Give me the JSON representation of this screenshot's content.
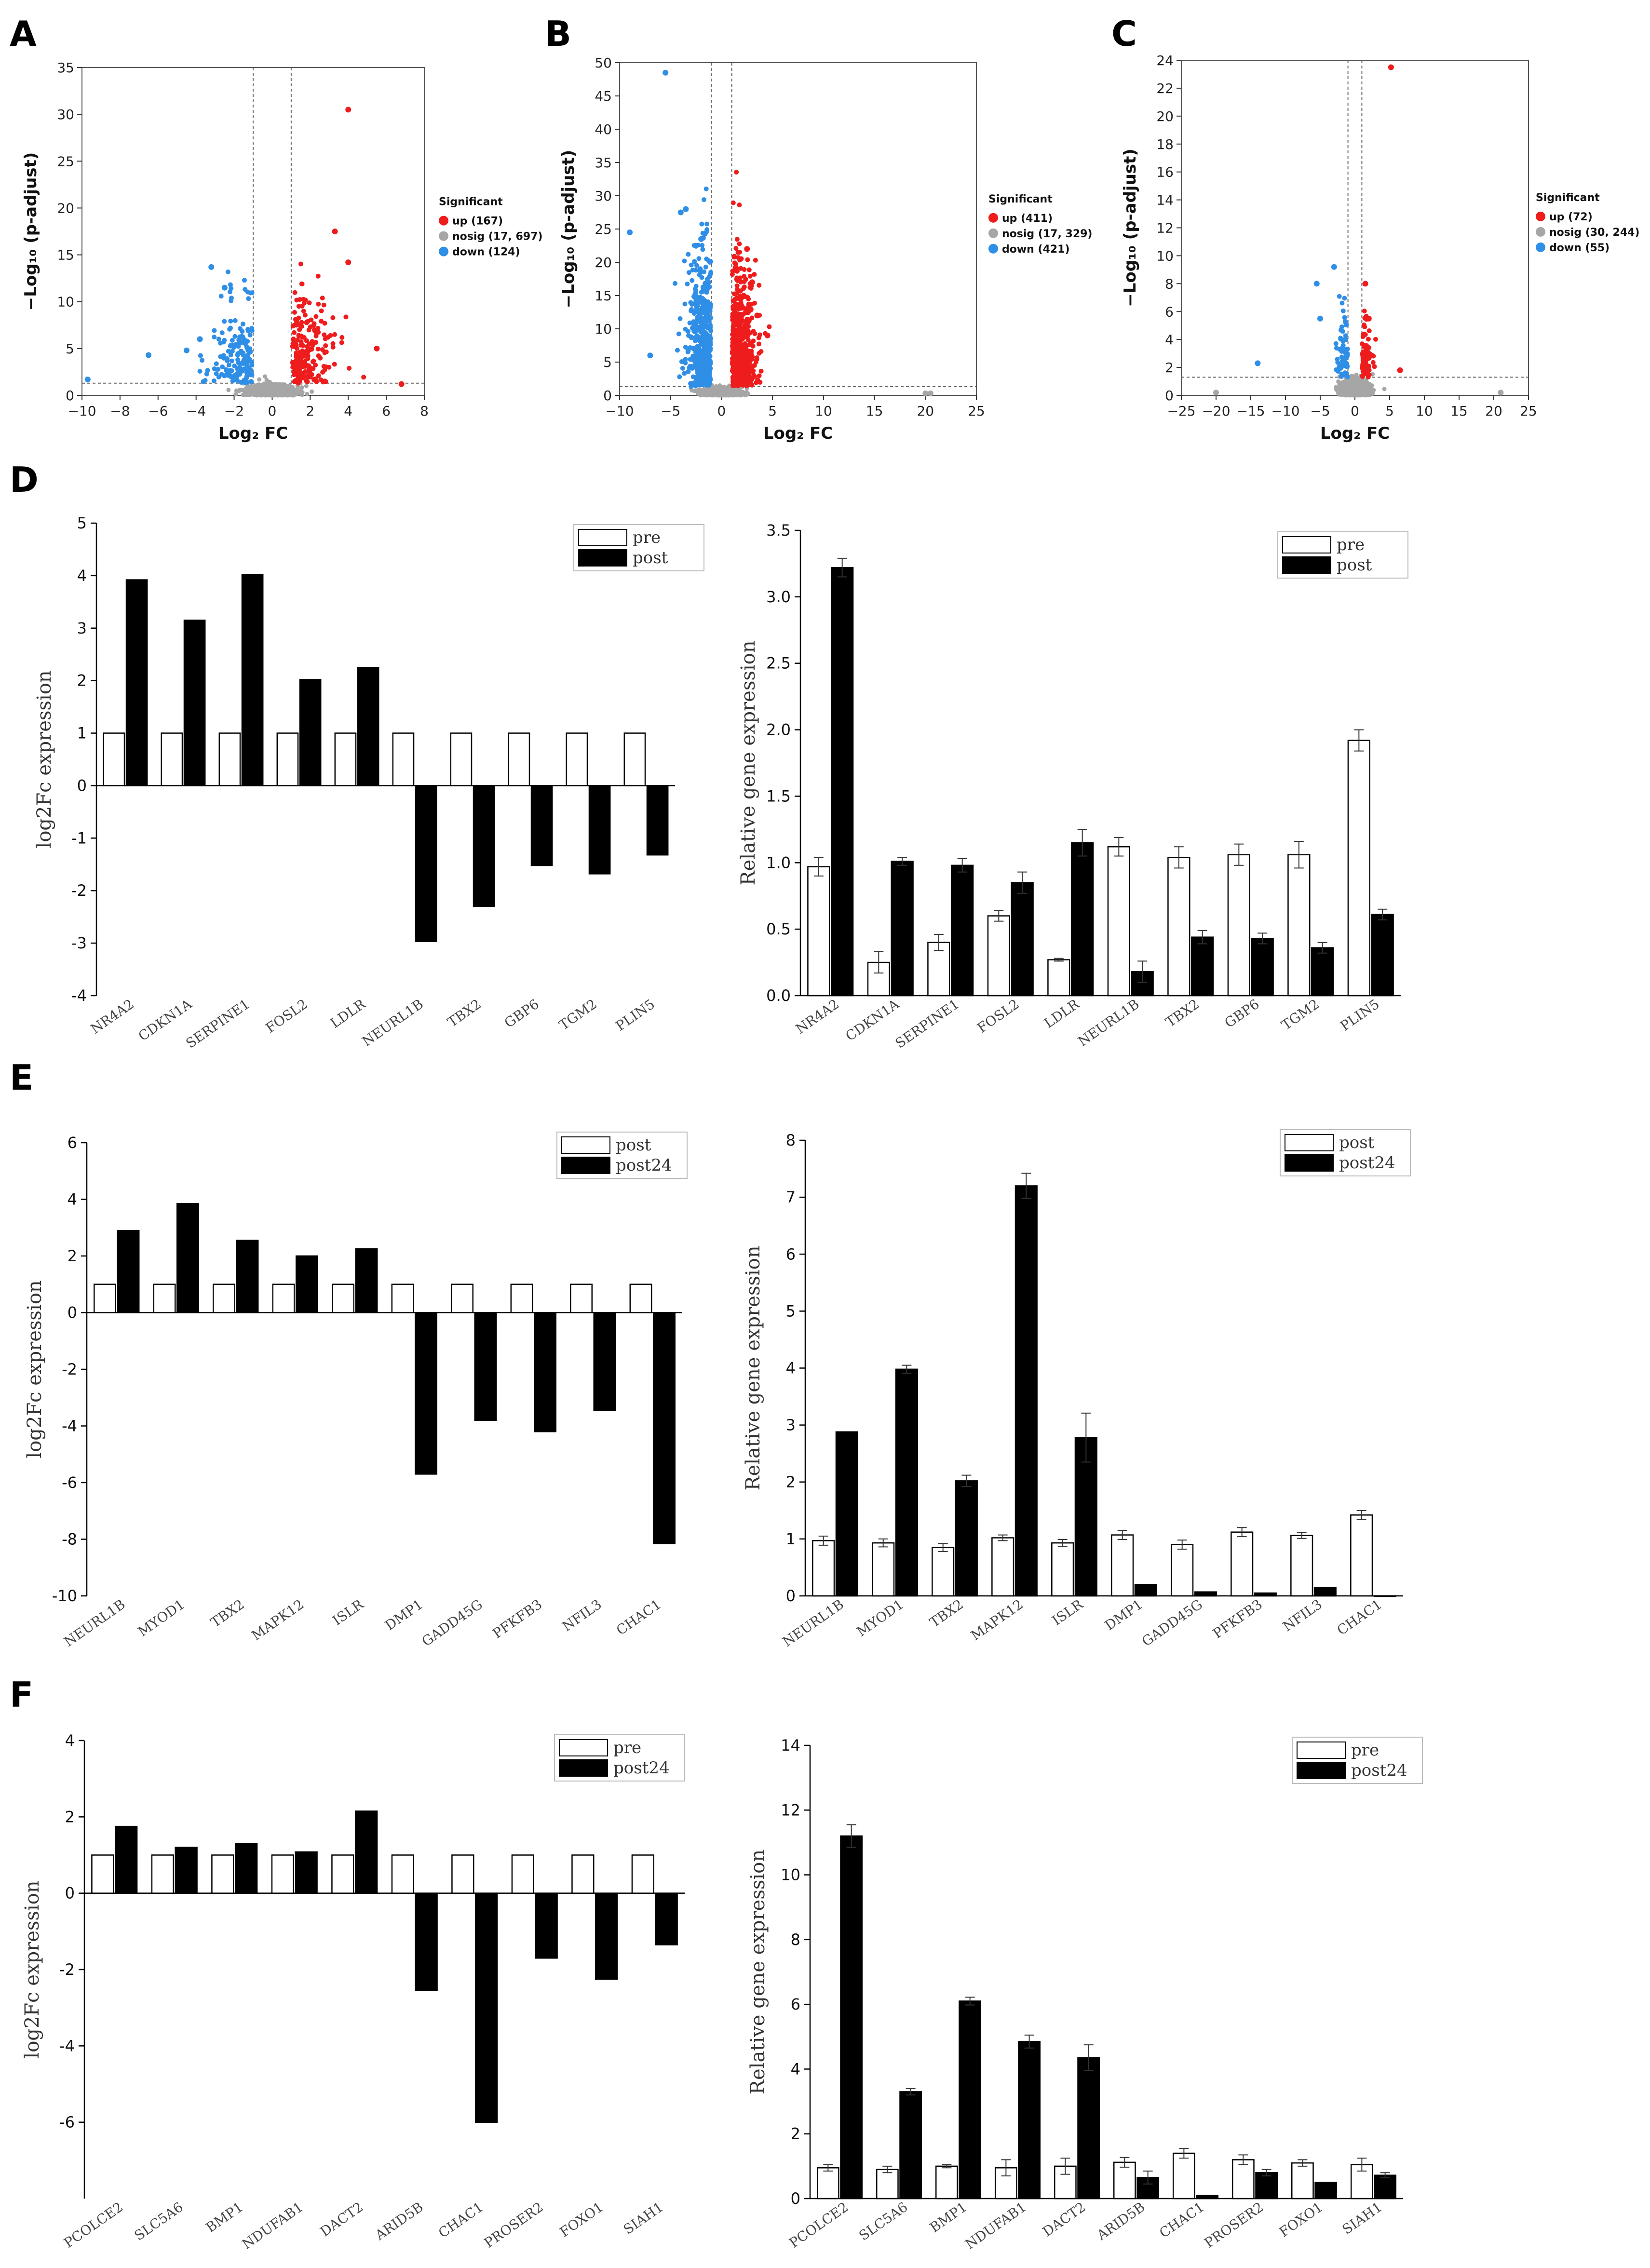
{
  "panel_labels": [
    "A",
    "B",
    "C",
    "D",
    "E",
    "F"
  ],
  "colors": {
    "up": "#ee1c1c",
    "nosig": "#a6a6a6",
    "down": "#2f8ee6",
    "pre": "#ffffff",
    "post": "#000000"
  },
  "chart_data": [
    {
      "id": "A",
      "type": "scatter",
      "title": "",
      "xlabel": "Log₂ FC",
      "ylabel": "−Log₁₀ (p-adjust)",
      "xlim": [
        -10,
        8
      ],
      "ylim": [
        0,
        35
      ],
      "xticks": [
        -10,
        -8,
        -6,
        -4,
        -2,
        0,
        2,
        4,
        6,
        8
      ],
      "yticks": [
        0,
        5,
        10,
        15,
        20,
        25,
        30,
        35
      ],
      "legend_title": "Significant",
      "legend_position": "right",
      "legend": [
        "up (167)",
        "nosig (17, 697)",
        "down (124)"
      ],
      "fc_threshold": [
        -1,
        1
      ],
      "p_threshold": 1.3,
      "outliers": [
        {
          "x": 4.0,
          "y": 30.5,
          "group": "up"
        },
        {
          "x": 3.3,
          "y": 17.5,
          "group": "up"
        },
        {
          "x": 4.0,
          "y": 14.2,
          "group": "up"
        },
        {
          "x": 6.8,
          "y": 1.2,
          "group": "up"
        },
        {
          "x": 5.5,
          "y": 5.0,
          "group": "up"
        },
        {
          "x": -3.2,
          "y": 13.7,
          "group": "down"
        },
        {
          "x": -2.5,
          "y": 11.5,
          "group": "down"
        },
        {
          "x": -6.5,
          "y": 4.3,
          "group": "down"
        },
        {
          "x": -9.7,
          "y": 1.7,
          "group": "down"
        },
        {
          "x": -3.8,
          "y": 6.0,
          "group": "down"
        },
        {
          "x": -4.5,
          "y": 4.8,
          "group": "down"
        }
      ]
    },
    {
      "id": "B",
      "type": "scatter",
      "title": "",
      "xlabel": "Log₂ FC",
      "ylabel": "−Log₁₀ (p-adjust)",
      "xlim": [
        -10,
        25
      ],
      "ylim": [
        0,
        50
      ],
      "xticks": [
        -10,
        -5,
        0,
        5,
        10,
        15,
        20,
        25
      ],
      "yticks": [
        0,
        5,
        10,
        15,
        20,
        25,
        30,
        35,
        40,
        45,
        50
      ],
      "legend_title": "Significant",
      "legend_position": "right",
      "legend": [
        "up (411)",
        "nosig (17, 329)",
        "down (421)"
      ],
      "fc_threshold": [
        -1,
        1
      ],
      "p_threshold": 1.3,
      "outliers": [
        {
          "x": -5.5,
          "y": 48.5,
          "group": "down"
        },
        {
          "x": -3.5,
          "y": 28.0,
          "group": "down"
        },
        {
          "x": -4.0,
          "y": 27.5,
          "group": "down"
        },
        {
          "x": -9.0,
          "y": 24.5,
          "group": "down"
        },
        {
          "x": -2.0,
          "y": 23.5,
          "group": "down"
        },
        {
          "x": -7.0,
          "y": 6.0,
          "group": "down"
        },
        {
          "x": 2.5,
          "y": 22.0,
          "group": "up"
        },
        {
          "x": 1.5,
          "y": 19.0,
          "group": "up"
        },
        {
          "x": 3.0,
          "y": 17.0,
          "group": "up"
        },
        {
          "x": 3.5,
          "y": 12.0,
          "group": "up"
        },
        {
          "x": 4.5,
          "y": 9.0,
          "group": "up"
        },
        {
          "x": 20.0,
          "y": 0.3,
          "group": "nosig"
        },
        {
          "x": 20.5,
          "y": 0.3,
          "group": "nosig"
        }
      ]
    },
    {
      "id": "C",
      "type": "scatter",
      "title": "",
      "xlabel": "Log₂ FC",
      "ylabel": "−Log₁₀ (p-adjust)",
      "xlim": [
        -25,
        25
      ],
      "ylim": [
        0,
        24
      ],
      "xticks": [
        -25,
        -20,
        -15,
        -10,
        -5,
        0,
        5,
        10,
        15,
        20,
        25
      ],
      "yticks": [
        0,
        2,
        4,
        6,
        8,
        10,
        12,
        14,
        16,
        18,
        20,
        22,
        24
      ],
      "legend_title": "Significant",
      "legend_position": "right",
      "legend": [
        "up (72)",
        "nosig (30, 244)",
        "down (55)"
      ],
      "fc_threshold": [
        -1,
        1
      ],
      "p_threshold": 1.3,
      "outliers": [
        {
          "x": 5.2,
          "y": 23.5,
          "group": "up"
        },
        {
          "x": 1.5,
          "y": 8.0,
          "group": "up"
        },
        {
          "x": 2.0,
          "y": 5.5,
          "group": "up"
        },
        {
          "x": 6.5,
          "y": 1.8,
          "group": "up"
        },
        {
          "x": -3.0,
          "y": 9.2,
          "group": "down"
        },
        {
          "x": -5.5,
          "y": 8.0,
          "group": "down"
        },
        {
          "x": -14.0,
          "y": 2.3,
          "group": "down"
        },
        {
          "x": -5.0,
          "y": 5.5,
          "group": "down"
        },
        {
          "x": -20.0,
          "y": 0.2,
          "group": "nosig"
        },
        {
          "x": 21.0,
          "y": 0.2,
          "group": "nosig"
        }
      ]
    },
    {
      "id": "D-left",
      "type": "bar",
      "title": "",
      "xlabel": "",
      "ylabel": "log2Fc expression",
      "ylim": [
        -4,
        5
      ],
      "yticks": [
        -4,
        -3,
        -2,
        -1,
        0,
        1,
        2,
        3,
        4,
        5
      ],
      "legend_position": "top-right",
      "categories": [
        "NR4A2",
        "CDKN1A",
        "SERPINE1",
        "FOSL2",
        "LDLR",
        "NEURL1B",
        "TBX2",
        "GBP6",
        "TGM2",
        "PLIN5"
      ],
      "series": [
        {
          "name": "pre",
          "values": [
            1,
            1,
            1,
            1,
            1,
            1,
            1,
            1,
            1,
            1
          ]
        },
        {
          "name": "post",
          "values": [
            3.92,
            3.15,
            4.02,
            2.02,
            2.25,
            -2.97,
            -2.3,
            -1.52,
            -1.68,
            -1.32
          ]
        }
      ]
    },
    {
      "id": "D-right",
      "type": "bar",
      "title": "",
      "xlabel": "",
      "ylabel": "Relative gene expression",
      "ylim": [
        0,
        3.5
      ],
      "yticks": [
        0.0,
        0.5,
        1.0,
        1.5,
        2.0,
        2.5,
        3.0,
        3.5
      ],
      "ytick_labels": [
        "0.0",
        "0.5",
        "1.0",
        "1.5",
        "2.0",
        "2.5",
        "3.0",
        "3.5"
      ],
      "legend_position": "top-right",
      "categories": [
        "NR4A2",
        "CDKN1A",
        "SERPINE1",
        "FOSL2",
        "LDLR",
        "NEURL1B",
        "TBX2",
        "GBP6",
        "TGM2",
        "PLIN5"
      ],
      "series": [
        {
          "name": "pre",
          "values": [
            0.97,
            0.25,
            0.4,
            0.6,
            0.27,
            1.12,
            1.04,
            1.06,
            1.06,
            1.92
          ],
          "errors": [
            0.07,
            0.08,
            0.06,
            0.04,
            0.01,
            0.07,
            0.08,
            0.08,
            0.1,
            0.08
          ]
        },
        {
          "name": "post",
          "values": [
            3.22,
            1.01,
            0.98,
            0.85,
            1.15,
            0.18,
            0.44,
            0.43,
            0.36,
            0.61
          ],
          "errors": [
            0.07,
            0.03,
            0.05,
            0.08,
            0.1,
            0.08,
            0.05,
            0.04,
            0.04,
            0.04
          ]
        }
      ]
    },
    {
      "id": "E-left",
      "type": "bar",
      "title": "",
      "xlabel": "",
      "ylabel": "log2Fc expression",
      "ylim": [
        -10,
        6
      ],
      "yticks": [
        -10,
        -8,
        -6,
        -4,
        -2,
        0,
        2,
        4,
        6
      ],
      "legend_position": "top-right",
      "categories": [
        "NEURL1B",
        "MYOD1",
        "TBX2",
        "MAPK12",
        "ISLR",
        "DMP1",
        "GADD45G",
        "PFKFB3",
        "NFIL3",
        "CHAC1"
      ],
      "series": [
        {
          "name": "post",
          "values": [
            1,
            1,
            1,
            1,
            1,
            1,
            1,
            1,
            1,
            1
          ]
        },
        {
          "name": "post24",
          "values": [
            2.9,
            3.85,
            2.55,
            2.0,
            2.25,
            -5.7,
            -3.8,
            -4.2,
            -3.45,
            -8.15
          ]
        }
      ]
    },
    {
      "id": "E-right",
      "type": "bar",
      "title": "",
      "xlabel": "",
      "ylabel": "Relative gene expression",
      "ylim": [
        0,
        8
      ],
      "yticks": [
        0,
        1,
        2,
        3,
        4,
        5,
        6,
        7,
        8
      ],
      "legend_position": "top-right",
      "categories": [
        "NEURL1B",
        "MYOD1",
        "TBX2",
        "MAPK12",
        "ISLR",
        "DMP1",
        "GADD45G",
        "PFKFB3",
        "NFIL3",
        "CHAC1"
      ],
      "series": [
        {
          "name": "post",
          "values": [
            0.97,
            0.93,
            0.85,
            1.02,
            0.93,
            1.07,
            0.9,
            1.12,
            1.06,
            1.42
          ],
          "errors": [
            0.08,
            0.07,
            0.07,
            0.05,
            0.06,
            0.08,
            0.08,
            0.08,
            0.05,
            0.08
          ]
        },
        {
          "name": "post24",
          "values": [
            2.88,
            3.98,
            2.02,
            7.2,
            2.78,
            0.2,
            0.07,
            0.05,
            0.15,
            0.0
          ],
          "errors": [
            0.0,
            0.07,
            0.1,
            0.22,
            0.43,
            0.0,
            0.0,
            0.0,
            0.0,
            0.0
          ]
        }
      ]
    },
    {
      "id": "F-left",
      "type": "bar",
      "title": "",
      "xlabel": "",
      "ylabel": "log2Fc expression",
      "ylim": [
        -8,
        4
      ],
      "yticks": [
        -6,
        -4,
        -2,
        0,
        2,
        4
      ],
      "legend_position": "top-right",
      "categories": [
        "PCOLCE2",
        "SLC5A6",
        "BMP1",
        "NDUFAB1",
        "DACT2",
        "ARID5B",
        "CHAC1",
        "PROSER2",
        "FOXO1",
        "SIAH1"
      ],
      "series": [
        {
          "name": "pre",
          "values": [
            1,
            1,
            1,
            1,
            1,
            1,
            1,
            1,
            1,
            1
          ]
        },
        {
          "name": "post24",
          "values": [
            1.75,
            1.2,
            1.3,
            1.08,
            2.15,
            -2.55,
            -6.0,
            -1.7,
            -2.25,
            -1.35
          ]
        }
      ]
    },
    {
      "id": "F-right",
      "type": "bar",
      "title": "",
      "xlabel": "",
      "ylabel": "Relative gene expression",
      "ylim": [
        0,
        14
      ],
      "yticks": [
        0,
        2,
        4,
        6,
        8,
        10,
        12,
        14
      ],
      "legend_position": "top-right",
      "categories": [
        "PCOLCE2",
        "SLC5A6",
        "BMP1",
        "NDUFAB1",
        "DACT2",
        "ARID5B",
        "CHAC1",
        "PROSER2",
        "FOXO1",
        "SIAH1"
      ],
      "series": [
        {
          "name": "pre",
          "values": [
            0.95,
            0.9,
            1.0,
            0.95,
            1.0,
            1.12,
            1.4,
            1.2,
            1.1,
            1.05
          ],
          "errors": [
            0.1,
            0.1,
            0.05,
            0.25,
            0.25,
            0.15,
            0.15,
            0.15,
            0.1,
            0.2
          ]
        },
        {
          "name": "post24",
          "values": [
            11.2,
            3.3,
            6.1,
            4.85,
            4.35,
            0.65,
            0.1,
            0.8,
            0.5,
            0.72
          ],
          "errors": [
            0.35,
            0.1,
            0.12,
            0.2,
            0.4,
            0.2,
            0.0,
            0.1,
            0.0,
            0.08
          ]
        }
      ]
    }
  ]
}
